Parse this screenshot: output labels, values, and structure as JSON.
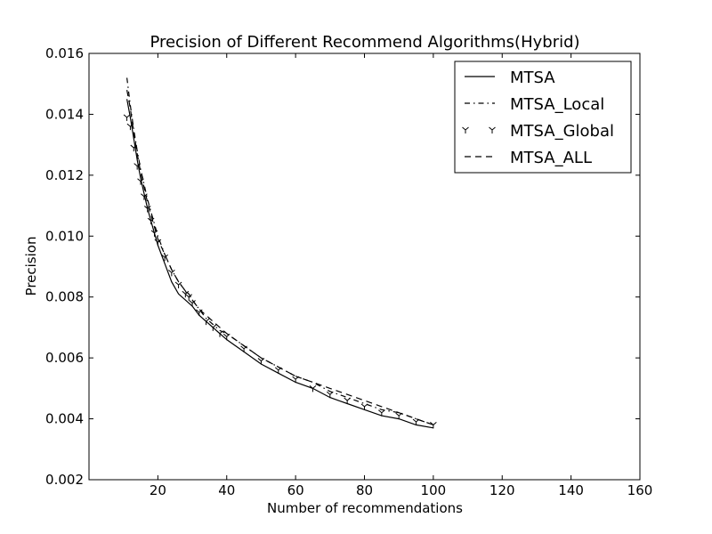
{
  "chart_data": {
    "type": "line",
    "title": "Precision of Different Recommend Algorithms(Hybrid)",
    "xlabel": "Number of recommendations",
    "ylabel": "Precision",
    "xlim": [
      0,
      160
    ],
    "ylim": [
      0.002,
      0.016
    ],
    "xticks": [
      "20",
      "40",
      "60",
      "80",
      "100",
      "120",
      "140",
      "160"
    ],
    "yticks": [
      "0.002",
      "0.004",
      "0.006",
      "0.008",
      "0.010",
      "0.012",
      "0.014",
      "0.016"
    ],
    "grid": false,
    "legend_position": "top-right",
    "x": [
      11,
      12,
      13,
      14,
      15,
      16,
      17,
      18,
      19,
      20,
      22,
      24,
      26,
      28,
      29,
      30,
      32,
      34,
      36,
      38,
      40,
      45,
      50,
      55,
      60,
      65,
      70,
      75,
      80,
      85,
      90,
      95,
      100
    ],
    "series": [
      {
        "name": "MTSA",
        "style": "solid",
        "values": [
          0.0145,
          0.0139,
          0.0132,
          0.0125,
          0.0119,
          0.0114,
          0.0109,
          0.0105,
          0.0101,
          0.0097,
          0.0091,
          0.0085,
          0.0081,
          0.0079,
          0.0078,
          0.0077,
          0.0074,
          0.0072,
          0.007,
          0.0068,
          0.0066,
          0.0062,
          0.0058,
          0.0055,
          0.0052,
          0.005,
          0.0047,
          0.0045,
          0.0043,
          0.0041,
          0.004,
          0.0038,
          0.0037
        ]
      },
      {
        "name": "MTSA_Local",
        "style": "dashdot",
        "values": [
          0.0152,
          0.0143,
          0.0135,
          0.0128,
          0.0122,
          0.0117,
          0.0112,
          0.0108,
          0.0104,
          0.01,
          0.0094,
          0.0089,
          0.0085,
          0.0082,
          0.008,
          0.0079,
          0.0076,
          0.0073,
          0.0071,
          0.0069,
          0.0068,
          0.0064,
          0.006,
          0.0057,
          0.0054,
          0.0052,
          0.0049,
          0.0047,
          0.0045,
          0.0043,
          0.0042,
          0.004,
          0.0038
        ]
      },
      {
        "name": "MTSA_Global",
        "style": "markers",
        "values": [
          0.0139,
          0.0136,
          0.0129,
          0.0123,
          0.0118,
          0.0113,
          0.0109,
          0.0105,
          0.0101,
          0.0098,
          0.0093,
          0.0088,
          0.0084,
          0.0081,
          0.008,
          0.0078,
          0.0075,
          0.0072,
          0.007,
          0.0068,
          0.0067,
          0.0063,
          0.0059,
          0.0056,
          0.0053,
          0.005,
          0.0048,
          0.0046,
          0.0044,
          0.0042,
          0.0041,
          0.0039,
          0.0038
        ]
      },
      {
        "name": "MTSA_ALL",
        "style": "dashed",
        "values": [
          0.0148,
          0.0142,
          0.0134,
          0.0127,
          0.0121,
          0.0116,
          0.0111,
          0.0107,
          0.0103,
          0.0099,
          0.0094,
          0.0089,
          0.0085,
          0.0082,
          0.0081,
          0.0079,
          0.0076,
          0.0074,
          0.0072,
          0.007,
          0.0068,
          0.0064,
          0.006,
          0.0057,
          0.0054,
          0.0052,
          0.005,
          0.0048,
          0.0046,
          0.0044,
          0.0042,
          0.004,
          0.0038
        ]
      }
    ]
  }
}
